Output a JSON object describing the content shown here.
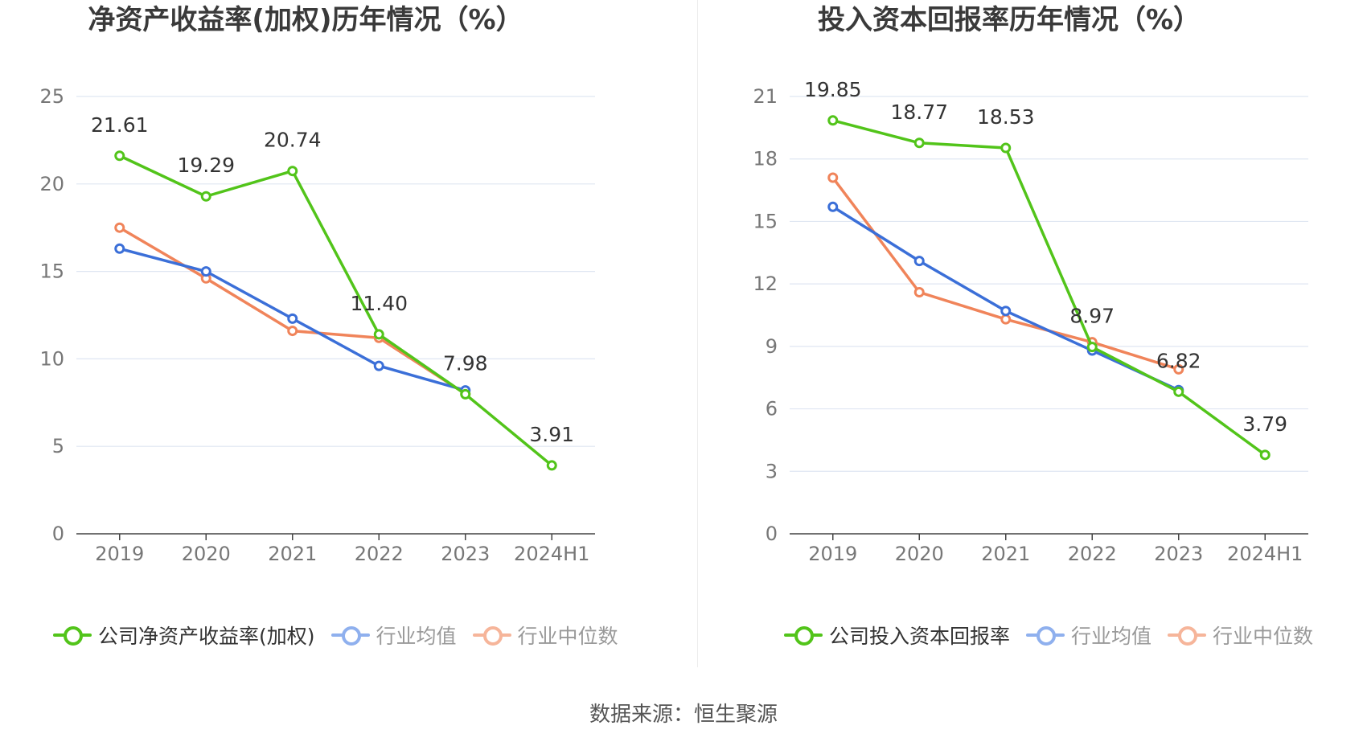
{
  "source": "数据来源：恒生聚源",
  "colors": {
    "company": "#52c41a",
    "industry_avg": "#3b6fd8",
    "industry_median": "#f0845a"
  },
  "chart_data": [
    {
      "type": "line",
      "title": "净资产收益率(加权)历年情况（%）",
      "categories": [
        "2019",
        "2020",
        "2021",
        "2022",
        "2023",
        "2024H1"
      ],
      "ylim": [
        0,
        25
      ],
      "yticks": [
        0,
        5,
        10,
        15,
        20,
        25
      ],
      "grid": true,
      "legend_position": "bottom",
      "series": [
        {
          "name": "公司净资产收益率(加权)",
          "key": "company",
          "values": [
            21.61,
            19.29,
            20.74,
            11.4,
            7.98,
            3.91
          ],
          "labels": [
            "21.61",
            "19.29",
            "20.74",
            "11.40",
            "7.98",
            "3.91"
          ]
        },
        {
          "name": "行业均值",
          "key": "industry_avg",
          "values": [
            16.3,
            15.0,
            12.3,
            9.6,
            8.2,
            null
          ]
        },
        {
          "name": "行业中位数",
          "key": "industry_median",
          "values": [
            17.5,
            14.6,
            11.6,
            11.2,
            8.0,
            null
          ]
        }
      ]
    },
    {
      "type": "line",
      "title": "投入资本回报率历年情况（%）",
      "categories": [
        "2019",
        "2020",
        "2021",
        "2022",
        "2023",
        "2024H1"
      ],
      "ylim": [
        0,
        21
      ],
      "yticks": [
        0,
        3,
        6,
        9,
        12,
        15,
        18,
        21
      ],
      "grid": true,
      "legend_position": "bottom",
      "series": [
        {
          "name": "公司投入资本回报率",
          "key": "company",
          "values": [
            19.85,
            18.77,
            18.53,
            8.97,
            6.82,
            3.79
          ],
          "labels": [
            "19.85",
            "18.77",
            "18.53",
            "8.97",
            "6.82",
            "3.79"
          ]
        },
        {
          "name": "行业均值",
          "key": "industry_avg",
          "values": [
            15.7,
            13.1,
            10.7,
            8.8,
            6.9,
            null
          ]
        },
        {
          "name": "行业中位数",
          "key": "industry_median",
          "values": [
            17.1,
            11.6,
            10.3,
            9.2,
            7.9,
            null
          ]
        }
      ]
    }
  ]
}
